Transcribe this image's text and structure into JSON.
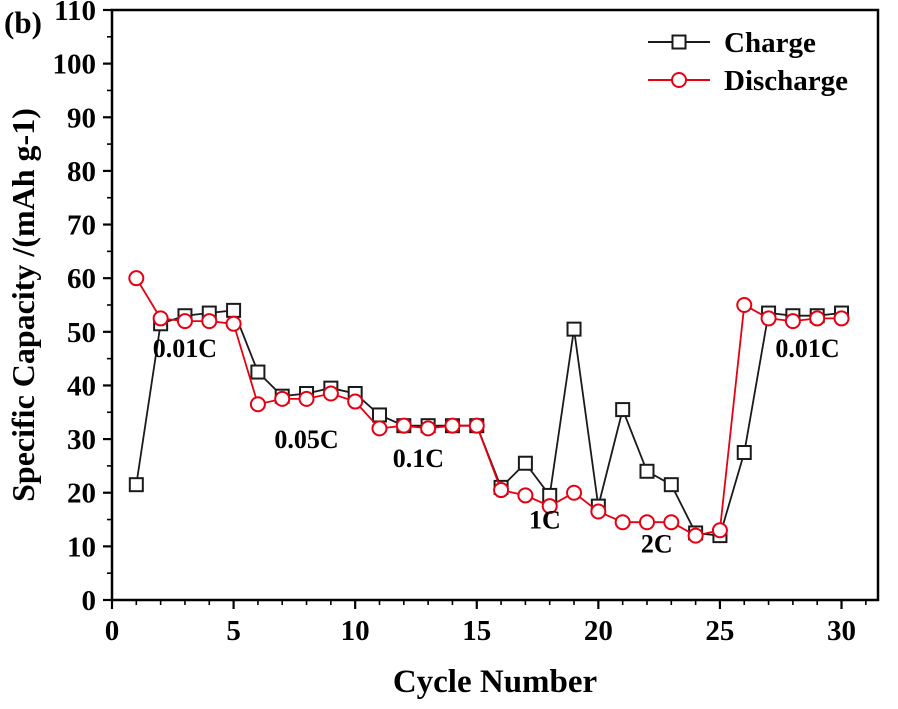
{
  "panel_label": "(b)",
  "chart_data": {
    "type": "line",
    "title": "",
    "xlabel": "Cycle Number",
    "ylabel": "Specific Capacity /(mAh g-1)",
    "xlim": [
      0,
      31.5
    ],
    "ylim": [
      0,
      110
    ],
    "x_ticks": [
      0,
      5,
      10,
      15,
      20,
      25,
      30
    ],
    "y_ticks": [
      0,
      10,
      20,
      30,
      40,
      50,
      60,
      70,
      80,
      90,
      100,
      110
    ],
    "grid": false,
    "x": [
      1,
      2,
      3,
      4,
      5,
      6,
      7,
      8,
      9,
      10,
      11,
      12,
      13,
      14,
      15,
      16,
      17,
      18,
      19,
      20,
      21,
      22,
      23,
      24,
      25,
      26,
      27,
      28,
      29,
      30
    ],
    "series": [
      {
        "name": "Charge",
        "color": "#1a1a1a",
        "marker": "square",
        "values": [
          21.5,
          51.5,
          53,
          53.5,
          54,
          42.5,
          38,
          38.5,
          39.5,
          38.5,
          34.5,
          32.5,
          32.5,
          32.5,
          32.5,
          21,
          25.5,
          19.5,
          50.5,
          17.5,
          35.5,
          24,
          21.5,
          12.5,
          12,
          27.5,
          53.5,
          53,
          53,
          53.5
        ]
      },
      {
        "name": "Discharge",
        "color": "#e60012",
        "marker": "circle",
        "values": [
          60,
          52.5,
          52,
          52,
          51.5,
          36.5,
          37.5,
          37.5,
          38.5,
          37,
          32,
          32.5,
          32,
          32.5,
          32.5,
          20.5,
          19.5,
          17.5,
          20,
          16.5,
          14.5,
          14.5,
          14.5,
          12,
          13,
          55,
          52.5,
          52,
          52.5,
          52.5
        ]
      }
    ],
    "annotations": [
      {
        "text": "0.01C",
        "x": 3.0,
        "y": 47
      },
      {
        "text": "0.05C",
        "x": 8.0,
        "y": 30
      },
      {
        "text": "0.1C",
        "x": 12.6,
        "y": 26.5
      },
      {
        "text": "1C",
        "x": 17.8,
        "y": 15
      },
      {
        "text": "2C",
        "x": 22.4,
        "y": 10.5
      },
      {
        "text": "0.01C",
        "x": 28.6,
        "y": 47
      }
    ],
    "legend": {
      "position": "top-right",
      "entries": [
        "Charge",
        "Discharge"
      ]
    }
  }
}
